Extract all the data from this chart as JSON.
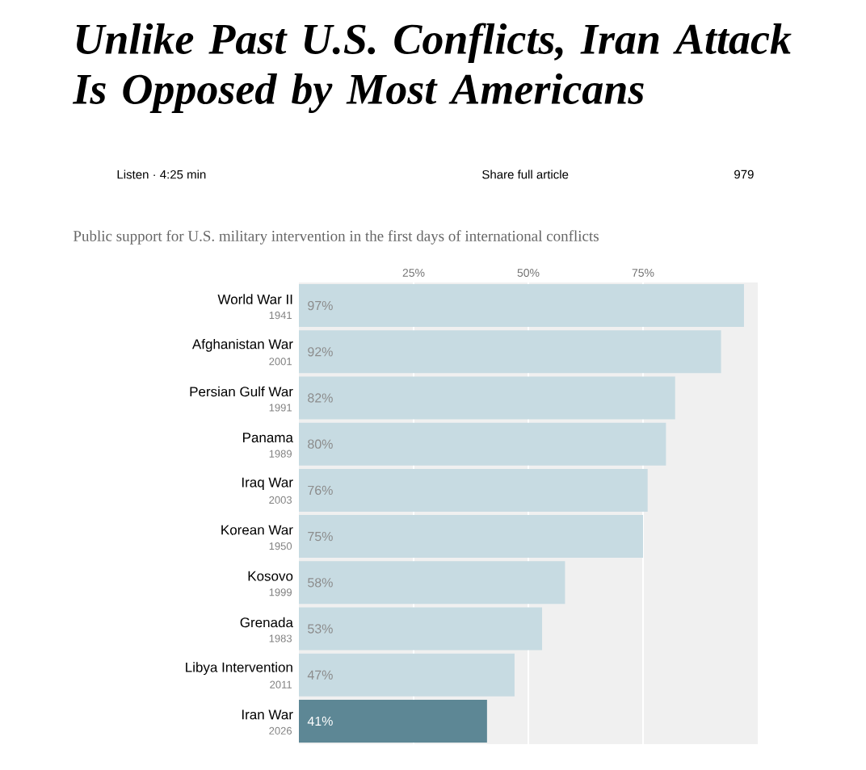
{
  "chart_data": {
    "type": "bar",
    "orientation": "horizontal",
    "title": "Unlike Past U.S. Conflicts, Iran Attack Is Opposed by Most Americans",
    "subtitle": "Public support for U.S. military intervention in the first days of international conflicts",
    "categories": [
      "World War II",
      "Afghanistan War",
      "Persian Gulf War",
      "Panama",
      "Iraq War",
      "Korean War",
      "Kosovo",
      "Grenada",
      "Libya Intervention",
      "Iran War"
    ],
    "values": [
      97,
      92,
      82,
      80,
      76,
      75,
      58,
      53,
      47,
      41
    ],
    "value_labels": [
      "97%",
      "92%",
      "82%",
      "80%",
      "76%",
      "75%",
      "58%",
      "53%",
      "47%",
      "41%"
    ],
    "colors": [
      "#c7dbe2",
      "#c7dbe2",
      "#c7dbe2",
      "#c7dbe2",
      "#c7dbe2",
      "#c7dbe2",
      "#c7dbe2",
      "#c7dbe2",
      "#c7dbe2",
      "#5d8795"
    ],
    "xlim": [
      0,
      100
    ],
    "xticks": [
      {
        "value": 25,
        "label": "25%"
      },
      {
        "value": 50,
        "label": "50%"
      },
      {
        "value": 75,
        "label": "75%"
      }
    ],
    "grid": "x",
    "annotations": [
      "Listen · 4:25 min",
      "Share full article",
      "979",
      "1941",
      "2001",
      "1991",
      "1989",
      "2003",
      "1950",
      "1999",
      "1983",
      "2011",
      "2026"
    ]
  }
}
